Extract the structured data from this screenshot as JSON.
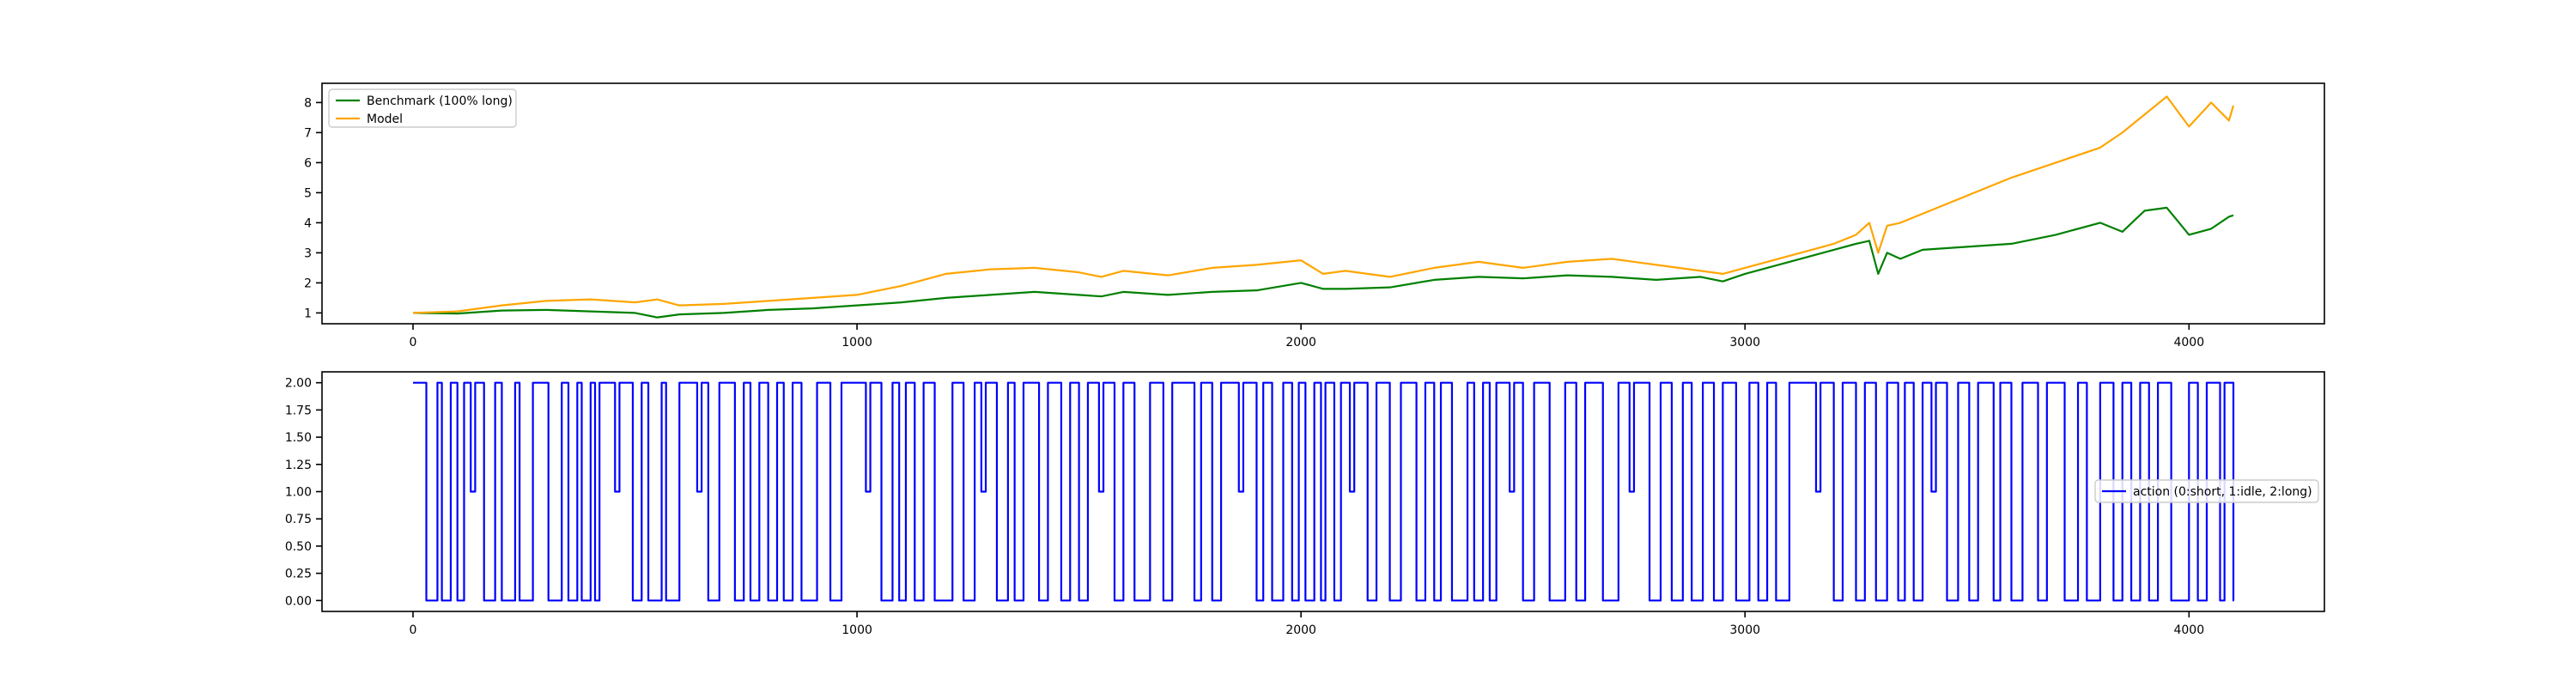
{
  "chart_data": [
    {
      "type": "line",
      "title": "",
      "xlabel": "",
      "ylabel": "",
      "xlim": [
        -205,
        4305
      ],
      "ylim": [
        0.64,
        8.64
      ],
      "xticks": [
        0,
        1000,
        2000,
        3000,
        4000
      ],
      "xtick_labels": [
        "0",
        "1000",
        "2000",
        "3000",
        "4000"
      ],
      "yticks": [
        1,
        2,
        3,
        4,
        5,
        6,
        7,
        8
      ],
      "ytick_labels": [
        "1",
        "2",
        "3",
        "4",
        "5",
        "6",
        "7",
        "8"
      ],
      "grid": false,
      "legend_position": "upper left",
      "x": [
        0,
        100,
        200,
        300,
        400,
        500,
        550,
        600,
        700,
        800,
        900,
        1000,
        1100,
        1200,
        1300,
        1400,
        1500,
        1550,
        1600,
        1700,
        1800,
        1900,
        2000,
        2050,
        2100,
        2200,
        2300,
        2400,
        2500,
        2600,
        2700,
        2800,
        2900,
        2950,
        3000,
        3100,
        3200,
        3250,
        3280,
        3300,
        3320,
        3350,
        3400,
        3500,
        3600,
        3700,
        3800,
        3850,
        3900,
        3950,
        4000,
        4050,
        4090,
        4100
      ],
      "series": [
        {
          "name": "Benchmark (100% long)",
          "color": "#008000",
          "values": [
            1.0,
            0.98,
            1.08,
            1.1,
            1.05,
            1.0,
            0.85,
            0.95,
            1.0,
            1.1,
            1.15,
            1.25,
            1.35,
            1.5,
            1.6,
            1.7,
            1.6,
            1.55,
            1.7,
            1.6,
            1.7,
            1.75,
            2.0,
            1.8,
            1.8,
            1.85,
            2.1,
            2.2,
            2.15,
            2.25,
            2.2,
            2.1,
            2.2,
            2.05,
            2.3,
            2.7,
            3.1,
            3.3,
            3.4,
            2.3,
            3.0,
            2.8,
            3.1,
            3.2,
            3.3,
            3.6,
            4.0,
            3.7,
            4.4,
            4.5,
            3.6,
            3.8,
            4.2,
            4.25
          ]
        },
        {
          "name": "Model",
          "color": "#ffa500",
          "values": [
            1.0,
            1.05,
            1.25,
            1.4,
            1.45,
            1.35,
            1.45,
            1.25,
            1.3,
            1.4,
            1.5,
            1.6,
            1.9,
            2.3,
            2.45,
            2.5,
            2.35,
            2.2,
            2.4,
            2.25,
            2.5,
            2.6,
            2.75,
            2.3,
            2.4,
            2.2,
            2.5,
            2.7,
            2.5,
            2.7,
            2.8,
            2.6,
            2.4,
            2.3,
            2.5,
            2.9,
            3.3,
            3.6,
            4.0,
            3.0,
            3.9,
            4.0,
            4.3,
            4.9,
            5.5,
            6.0,
            6.5,
            7.0,
            7.6,
            8.2,
            7.2,
            8.0,
            7.4,
            7.9
          ]
        }
      ]
    },
    {
      "type": "line",
      "title": "",
      "xlabel": "",
      "ylabel": "",
      "xlim": [
        -205,
        4305
      ],
      "ylim": [
        -0.1,
        2.1
      ],
      "xticks": [
        0,
        1000,
        2000,
        3000,
        4000
      ],
      "xtick_labels": [
        "0",
        "1000",
        "2000",
        "3000",
        "4000"
      ],
      "yticks": [
        0,
        0.25,
        0.5,
        0.75,
        1.0,
        1.25,
        1.5,
        1.75,
        2.0
      ],
      "ytick_labels": [
        "0.00",
        "0.25",
        "0.50",
        "0.75",
        "1.00",
        "1.25",
        "1.50",
        "1.75",
        "2.00"
      ],
      "grid": false,
      "legend_position": "center right",
      "series": [
        {
          "name": "action (0:short, 1:idle, 2:long)",
          "color": "#0000ff",
          "steps": [
            [
              0,
              2
            ],
            [
              30,
              0
            ],
            [
              55,
              2
            ],
            [
              65,
              0
            ],
            [
              85,
              2
            ],
            [
              100,
              0
            ],
            [
              115,
              2
            ],
            [
              130,
              1
            ],
            [
              140,
              2
            ],
            [
              160,
              0
            ],
            [
              185,
              2
            ],
            [
              200,
              0
            ],
            [
              230,
              2
            ],
            [
              240,
              0
            ],
            [
              270,
              2
            ],
            [
              305,
              0
            ],
            [
              335,
              2
            ],
            [
              350,
              0
            ],
            [
              370,
              2
            ],
            [
              380,
              0
            ],
            [
              400,
              2
            ],
            [
              410,
              0
            ],
            [
              420,
              2
            ],
            [
              455,
              1
            ],
            [
              465,
              2
            ],
            [
              495,
              0
            ],
            [
              515,
              2
            ],
            [
              530,
              0
            ],
            [
              560,
              2
            ],
            [
              570,
              0
            ],
            [
              600,
              2
            ],
            [
              640,
              1
            ],
            [
              650,
              2
            ],
            [
              665,
              0
            ],
            [
              690,
              2
            ],
            [
              725,
              0
            ],
            [
              745,
              2
            ],
            [
              760,
              0
            ],
            [
              780,
              2
            ],
            [
              800,
              0
            ],
            [
              820,
              2
            ],
            [
              835,
              0
            ],
            [
              855,
              2
            ],
            [
              875,
              0
            ],
            [
              910,
              2
            ],
            [
              940,
              0
            ],
            [
              965,
              2
            ],
            [
              1020,
              1
            ],
            [
              1030,
              2
            ],
            [
              1055,
              0
            ],
            [
              1080,
              2
            ],
            [
              1095,
              0
            ],
            [
              1110,
              2
            ],
            [
              1130,
              0
            ],
            [
              1150,
              2
            ],
            [
              1175,
              0
            ],
            [
              1215,
              2
            ],
            [
              1240,
              0
            ],
            [
              1265,
              2
            ],
            [
              1280,
              1
            ],
            [
              1290,
              2
            ],
            [
              1315,
              0
            ],
            [
              1340,
              2
            ],
            [
              1355,
              0
            ],
            [
              1375,
              2
            ],
            [
              1410,
              0
            ],
            [
              1430,
              2
            ],
            [
              1460,
              0
            ],
            [
              1480,
              2
            ],
            [
              1500,
              0
            ],
            [
              1520,
              2
            ],
            [
              1545,
              1
            ],
            [
              1555,
              2
            ],
            [
              1580,
              0
            ],
            [
              1600,
              2
            ],
            [
              1625,
              0
            ],
            [
              1660,
              2
            ],
            [
              1690,
              0
            ],
            [
              1710,
              2
            ],
            [
              1760,
              0
            ],
            [
              1775,
              2
            ],
            [
              1800,
              0
            ],
            [
              1820,
              2
            ],
            [
              1860,
              1
            ],
            [
              1870,
              2
            ],
            [
              1900,
              0
            ],
            [
              1915,
              2
            ],
            [
              1935,
              0
            ],
            [
              1960,
              2
            ],
            [
              1980,
              0
            ],
            [
              1995,
              2
            ],
            [
              2010,
              0
            ],
            [
              2030,
              2
            ],
            [
              2045,
              0
            ],
            [
              2055,
              2
            ],
            [
              2075,
              0
            ],
            [
              2090,
              2
            ],
            [
              2110,
              1
            ],
            [
              2120,
              2
            ],
            [
              2150,
              0
            ],
            [
              2170,
              2
            ],
            [
              2200,
              0
            ],
            [
              2225,
              2
            ],
            [
              2260,
              0
            ],
            [
              2280,
              2
            ],
            [
              2300,
              0
            ],
            [
              2315,
              2
            ],
            [
              2340,
              0
            ],
            [
              2375,
              2
            ],
            [
              2390,
              0
            ],
            [
              2410,
              2
            ],
            [
              2425,
              0
            ],
            [
              2440,
              2
            ],
            [
              2470,
              1
            ],
            [
              2480,
              2
            ],
            [
              2500,
              0
            ],
            [
              2525,
              2
            ],
            [
              2560,
              0
            ],
            [
              2595,
              2
            ],
            [
              2620,
              0
            ],
            [
              2640,
              2
            ],
            [
              2680,
              0
            ],
            [
              2715,
              2
            ],
            [
              2740,
              1
            ],
            [
              2750,
              2
            ],
            [
              2785,
              0
            ],
            [
              2810,
              2
            ],
            [
              2835,
              0
            ],
            [
              2860,
              2
            ],
            [
              2880,
              0
            ],
            [
              2905,
              2
            ],
            [
              2930,
              0
            ],
            [
              2950,
              2
            ],
            [
              2980,
              0
            ],
            [
              3010,
              2
            ],
            [
              3030,
              0
            ],
            [
              3050,
              2
            ],
            [
              3070,
              0
            ],
            [
              3100,
              2
            ],
            [
              3160,
              1
            ],
            [
              3170,
              2
            ],
            [
              3200,
              0
            ],
            [
              3220,
              2
            ],
            [
              3250,
              0
            ],
            [
              3270,
              2
            ],
            [
              3295,
              0
            ],
            [
              3320,
              2
            ],
            [
              3345,
              0
            ],
            [
              3360,
              2
            ],
            [
              3380,
              0
            ],
            [
              3400,
              2
            ],
            [
              3420,
              1
            ],
            [
              3430,
              2
            ],
            [
              3455,
              0
            ],
            [
              3480,
              2
            ],
            [
              3505,
              0
            ],
            [
              3525,
              2
            ],
            [
              3560,
              0
            ],
            [
              3575,
              2
            ],
            [
              3600,
              0
            ],
            [
              3625,
              2
            ],
            [
              3660,
              0
            ],
            [
              3680,
              2
            ],
            [
              3720,
              0
            ],
            [
              3750,
              2
            ],
            [
              3770,
              0
            ],
            [
              3800,
              2
            ],
            [
              3830,
              0
            ],
            [
              3850,
              2
            ],
            [
              3870,
              0
            ],
            [
              3890,
              2
            ],
            [
              3910,
              0
            ],
            [
              3930,
              2
            ],
            [
              3960,
              0
            ],
            [
              4000,
              2
            ],
            [
              4020,
              0
            ],
            [
              4040,
              2
            ],
            [
              4070,
              0
            ],
            [
              4080,
              2
            ],
            [
              4100,
              0
            ]
          ]
        }
      ]
    }
  ]
}
